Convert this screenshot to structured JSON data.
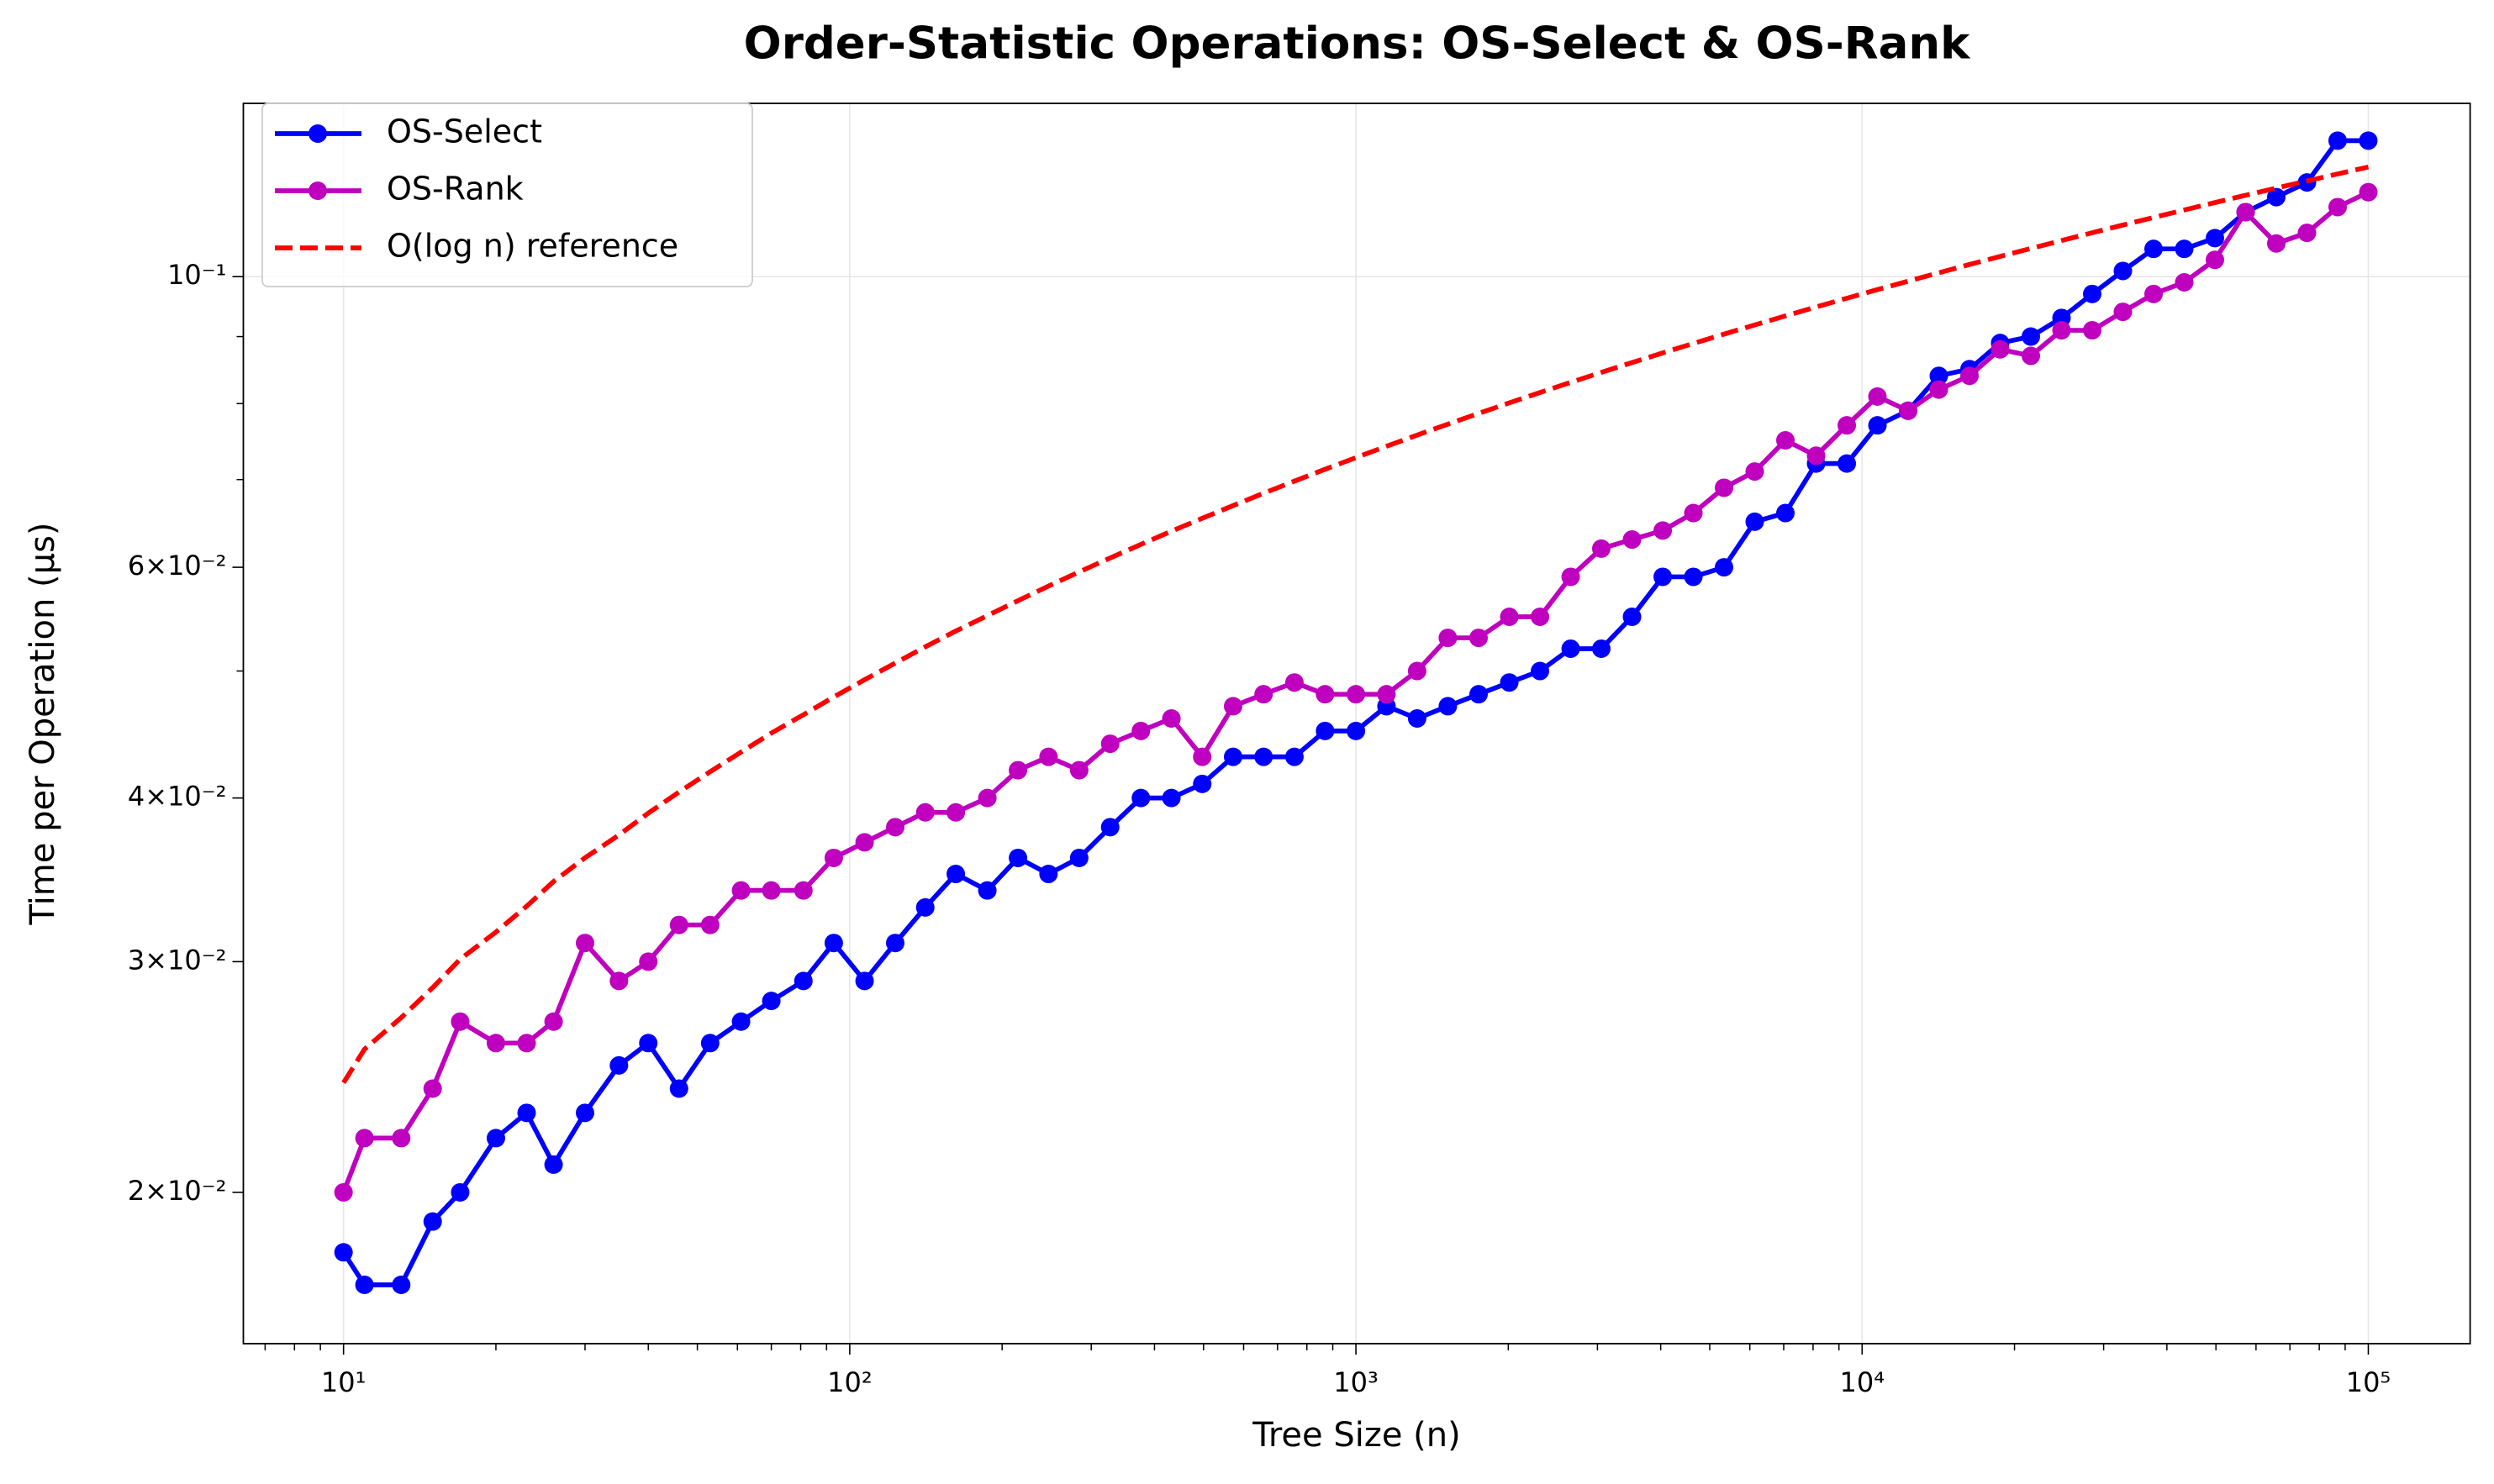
{
  "chart_data": {
    "type": "line",
    "title": "Order-Statistic Operations: OS-Select & OS-Rank",
    "x_label": "Tree Size (n)",
    "y_label": "Time per Operation (µs)",
    "xscale": "log",
    "yscale": "log",
    "grid": true,
    "legend": "upper left",
    "x": [
      10,
      11,
      13,
      15,
      17,
      20,
      23,
      26,
      30,
      35,
      40,
      46,
      53,
      61,
      70,
      81,
      93,
      107,
      123,
      141,
      162,
      187,
      215,
      247,
      284,
      327,
      376,
      432,
      497,
      572,
      657,
      756,
      869,
      1000,
      1149,
      1321,
      1519,
      1747,
      2009,
      2310,
      2656,
      3053,
      3511,
      4037,
      4641,
      5336,
      6135,
      7054,
      8111,
      9326,
      10722,
      12328,
      14174,
      16297,
      18738,
      21544,
      24770,
      28480,
      32745,
      37649,
      43287,
      49770,
      57223,
      65793,
      75646,
      86974,
      100000
    ],
    "series": [
      {
        "name": "OS-Select",
        "color": "#0000ff",
        "marker": true,
        "values": [
          0.018,
          0.017,
          0.017,
          0.019,
          0.02,
          0.022,
          0.023,
          0.021,
          0.023,
          0.025,
          0.026,
          0.024,
          0.026,
          0.027,
          0.028,
          0.029,
          0.031,
          0.029,
          0.031,
          0.033,
          0.035,
          0.034,
          0.036,
          0.035,
          0.036,
          0.038,
          0.04,
          0.04,
          0.041,
          0.043,
          0.043,
          0.043,
          0.045,
          0.045,
          0.047,
          0.046,
          0.047,
          0.048,
          0.049,
          0.05,
          0.052,
          0.052,
          0.055,
          0.059,
          0.059,
          0.06,
          0.065,
          0.066,
          0.072,
          0.072,
          0.077,
          0.079,
          0.084,
          0.085,
          0.089,
          0.09,
          0.093,
          0.097,
          0.101,
          0.105,
          0.105,
          0.107,
          0.112,
          0.115,
          0.118,
          0.127,
          0.127
        ]
      },
      {
        "name": "OS-Rank",
        "color": "#bf00bf",
        "marker": true,
        "values": [
          0.02,
          0.022,
          0.022,
          0.024,
          0.027,
          0.026,
          0.026,
          0.027,
          0.031,
          0.029,
          0.03,
          0.032,
          0.032,
          0.034,
          0.034,
          0.034,
          0.036,
          0.037,
          0.038,
          0.039,
          0.039,
          0.04,
          0.042,
          0.043,
          0.042,
          0.044,
          0.045,
          0.046,
          0.043,
          0.047,
          0.048,
          0.049,
          0.048,
          0.048,
          0.048,
          0.05,
          0.053,
          0.053,
          0.055,
          0.055,
          0.059,
          0.062,
          0.063,
          0.064,
          0.066,
          0.069,
          0.071,
          0.075,
          0.073,
          0.077,
          0.081,
          0.079,
          0.082,
          0.084,
          0.088,
          0.087,
          0.091,
          0.091,
          0.094,
          0.097,
          0.099,
          0.103,
          0.112,
          0.106,
          0.108,
          0.113,
          0.116
        ]
      },
      {
        "name": "O(log n) reference",
        "color": "#ff0000",
        "dashed": true,
        "values": [
          0.02425,
          0.02572,
          0.02719,
          0.02866,
          0.03013,
          0.0316,
          0.03307,
          0.03454,
          0.03601,
          0.03748,
          0.03895,
          0.04042,
          0.04189,
          0.04336,
          0.04483,
          0.0463,
          0.04777,
          0.04924,
          0.0507,
          0.05217,
          0.05364,
          0.05511,
          0.05658,
          0.05805,
          0.05952,
          0.06099,
          0.06246,
          0.06393,
          0.0654,
          0.06687,
          0.06834,
          0.06981,
          0.07128,
          0.07275,
          0.07422,
          0.07569,
          0.07716,
          0.07863,
          0.0801,
          0.08157,
          0.08304,
          0.08451,
          0.08598,
          0.08745,
          0.08892,
          0.09039,
          0.09186,
          0.09333,
          0.0948,
          0.09627,
          0.09774,
          0.09921,
          0.10068,
          0.10215,
          0.10362,
          0.10508,
          0.10655,
          0.10802,
          0.10949,
          0.11096,
          0.11243,
          0.1139,
          0.11537,
          0.11684,
          0.11831,
          0.11978,
          0.12125
        ]
      }
    ],
    "xlim": [
      6.34,
      158900
    ],
    "ylim": [
      0.01533,
      0.1356
    ],
    "xticks": [
      {
        "value": 10,
        "label": "10¹"
      },
      {
        "value": 100,
        "label": "10²"
      },
      {
        "value": 1000,
        "label": "10³"
      },
      {
        "value": 10000,
        "label": "10⁴"
      },
      {
        "value": 100000,
        "label": "10⁵"
      }
    ],
    "yticks": [
      {
        "value": 0.02,
        "label": "2×10⁻²"
      },
      {
        "value": 0.03,
        "label": "3×10⁻²"
      },
      {
        "value": 0.04,
        "label": "4×10⁻²"
      },
      {
        "value": 0.06,
        "label": "6×10⁻²"
      },
      {
        "value": 0.1,
        "label": "10⁻¹"
      }
    ]
  }
}
